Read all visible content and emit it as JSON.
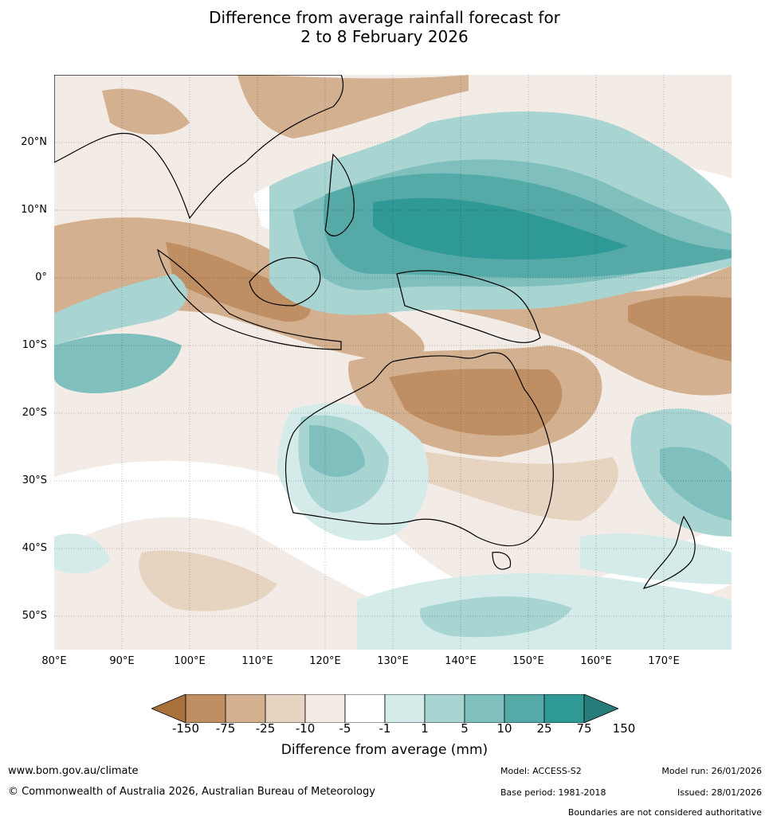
{
  "title": {
    "line1": "Difference from average rainfall forecast for",
    "line2": "2 to 8 February 2026"
  },
  "map": {
    "lat_labels": [
      "20°N",
      "10°N",
      "0°",
      "10°S",
      "20°S",
      "30°S",
      "40°S",
      "50°S"
    ],
    "lon_labels": [
      "80°E",
      "90°E",
      "100°E",
      "110°E",
      "120°E",
      "130°E",
      "140°E",
      "150°E",
      "160°E",
      "170°E"
    ],
    "region": "Indian Ocean, Maritime Continent, Australia, western Pacific, New Zealand",
    "extent": {
      "lon_min": 80,
      "lon_max": 180,
      "lat_min": -55,
      "lat_max": 30
    }
  },
  "legend": {
    "ticks": [
      "-150",
      "-75",
      "-25",
      "-10",
      "-5",
      "-1",
      "1",
      "5",
      "10",
      "25",
      "75",
      "150"
    ],
    "title": "Difference from average (mm)",
    "colors": [
      "#a9713b",
      "#bf8f63",
      "#d3b190",
      "#e6d3c0",
      "#f3ece6",
      "#ffffff",
      "#d4ebe9",
      "#a8d5d2",
      "#7fc0be",
      "#55aaa8",
      "#2f9996",
      "#277b79"
    ]
  },
  "footer": {
    "website": "www.bom.gov.au/climate",
    "copyright": "© Commonwealth of Australia 2026, Australian Bureau of Meteorology",
    "model": "Model: ACCESS-S2",
    "base_period": "Base period: 1981-2018",
    "model_run": "Model run: 26/01/2026",
    "issued": "Issued: 28/01/2026",
    "disclaimer": "Boundaries are not considered authoritative"
  }
}
